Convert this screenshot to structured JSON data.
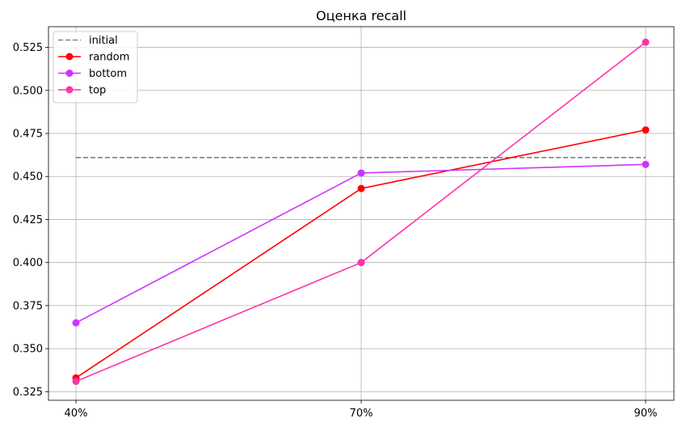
{
  "chart_data": {
    "type": "line",
    "title": "Оценка recall",
    "xlabel": "",
    "ylabel": "",
    "categories": [
      "40%",
      "70%",
      "90%"
    ],
    "ylim": [
      0.32,
      0.537
    ],
    "yticks": [
      0.325,
      0.35,
      0.375,
      0.4,
      0.425,
      0.45,
      0.475,
      0.5,
      0.525
    ],
    "ytick_labels": [
      "0.325",
      "0.350",
      "0.375",
      "0.400",
      "0.425",
      "0.450",
      "0.475",
      "0.500",
      "0.525"
    ],
    "grid": true,
    "legend_position": "top-left",
    "series": [
      {
        "name": "initial",
        "values": [
          0.461,
          0.461,
          0.461
        ],
        "color": "#808080",
        "style": "dashed",
        "marker": "none"
      },
      {
        "name": "random",
        "values": [
          0.333,
          0.443,
          0.477
        ],
        "color": "#ff0000",
        "style": "solid",
        "marker": "circle"
      },
      {
        "name": "bottom",
        "values": [
          0.365,
          0.452,
          0.457
        ],
        "color": "#cc33ff",
        "style": "solid",
        "marker": "circle"
      },
      {
        "name": "top",
        "values": [
          0.331,
          0.4,
          0.528
        ],
        "color": "#ff33aa",
        "style": "solid",
        "marker": "circle"
      }
    ]
  }
}
